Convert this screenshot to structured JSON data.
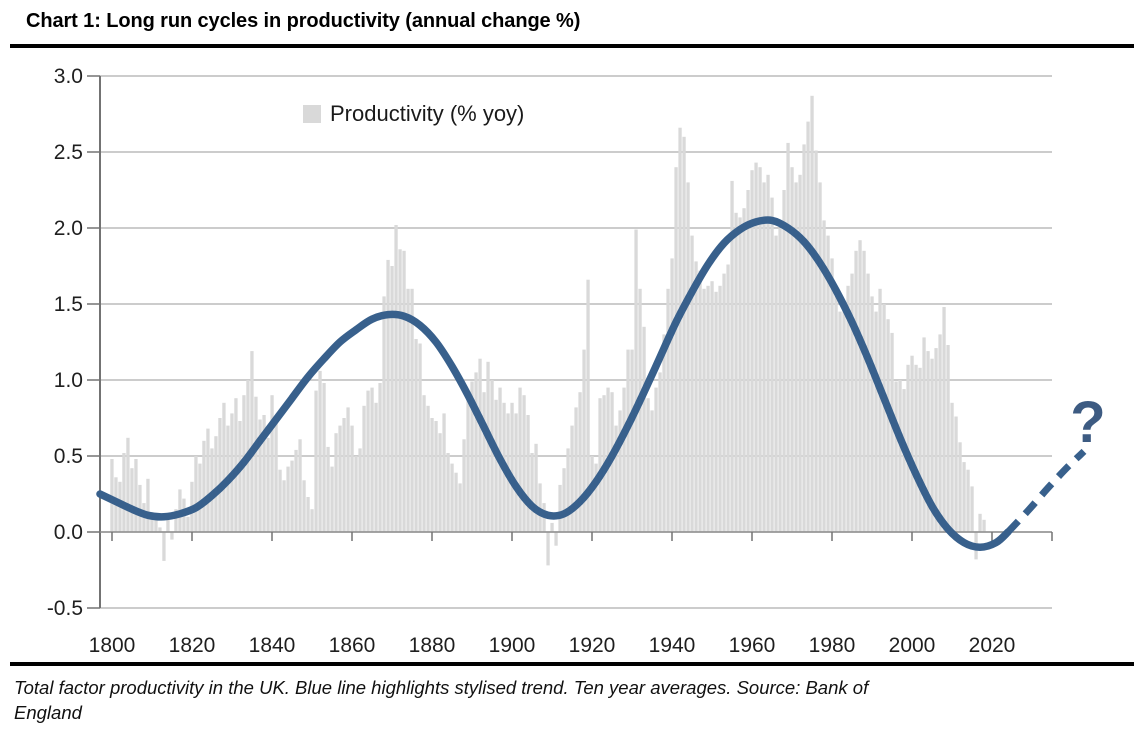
{
  "header": {
    "title": "Chart 1: Long run cycles in productivity (annual change %)"
  },
  "footer": {
    "caption_line1": "Total factor productivity in the UK. Blue line highlights stylised trend. Ten year averages. Source: Bank of",
    "caption_line2": "England"
  },
  "chart_data": {
    "type": "bar",
    "title": "Chart 1: Long run cycles in productivity (annual change %)",
    "source_note": "Total factor productivity in the UK. Blue line highlights stylised trend. Ten year averages. Source: Bank of England",
    "xlabel": "",
    "ylabel": "",
    "xlim": [
      1797,
      2044
    ],
    "ylim": [
      -0.5,
      3.0
    ],
    "grid": "horizontal",
    "x_ticks": [
      1800,
      1820,
      1840,
      1860,
      1880,
      1900,
      1920,
      1940,
      1960,
      1980,
      2000,
      2020
    ],
    "y_ticks": [
      "3.0",
      "2.5",
      "2.0",
      "1.5",
      "1.0",
      "0.5",
      "0.0",
      "-0.5"
    ],
    "colors": {
      "bar": "#d9d9d9",
      "trend": "#38608c",
      "grid": "#adadad",
      "axis": "#737373",
      "tick_label": "#1f1f1f"
    },
    "legend": {
      "position": "top-center",
      "entries": [
        {
          "label": "Productivity (% yoy)",
          "swatch_color": "#d9d9d9"
        }
      ]
    },
    "series": [
      {
        "name": "Productivity (% yoy)",
        "type": "bar",
        "color": "#d9d9d9",
        "start_year": 1800,
        "values": [
          0.48,
          0.36,
          0.33,
          0.52,
          0.62,
          0.42,
          0.48,
          0.31,
          0.19,
          0.35,
          0.13,
          0.08,
          0.03,
          -0.19,
          0.08,
          -0.05,
          0.15,
          0.28,
          0.22,
          0.1,
          0.33,
          0.5,
          0.45,
          0.6,
          0.68,
          0.55,
          0.63,
          0.75,
          0.85,
          0.7,
          0.78,
          0.88,
          0.73,
          0.9,
          1.0,
          1.19,
          0.89,
          0.74,
          0.77,
          0.62,
          0.9,
          0.75,
          0.41,
          0.34,
          0.43,
          0.47,
          0.54,
          0.61,
          0.34,
          0.23,
          0.15,
          0.93,
          1.06,
          0.98,
          0.56,
          0.43,
          0.65,
          0.7,
          0.75,
          0.82,
          0.7,
          0.5,
          0.55,
          0.83,
          0.93,
          0.95,
          0.85,
          0.98,
          1.55,
          1.79,
          1.75,
          2.02,
          1.86,
          1.85,
          1.6,
          1.6,
          1.27,
          1.24,
          0.9,
          0.83,
          0.75,
          0.73,
          0.65,
          0.78,
          0.52,
          0.45,
          0.39,
          0.32,
          0.61,
          0.89,
          0.99,
          1.05,
          1.14,
          0.92,
          1.12,
          1.0,
          0.87,
          0.95,
          0.85,
          0.78,
          0.85,
          0.78,
          0.95,
          0.9,
          0.77,
          0.52,
          0.58,
          0.32,
          0.19,
          -0.22,
          0.06,
          -0.09,
          0.31,
          0.42,
          0.55,
          0.7,
          0.82,
          0.92,
          1.2,
          1.66,
          0.5,
          0.45,
          0.88,
          0.9,
          0.95,
          0.92,
          0.7,
          0.8,
          0.95,
          1.2,
          1.2,
          1.99,
          1.6,
          1.35,
          0.88,
          0.8,
          0.95,
          1.05,
          1.3,
          1.6,
          1.8,
          2.4,
          2.66,
          2.6,
          2.3,
          1.95,
          1.78,
          1.72,
          1.6,
          1.62,
          1.65,
          1.58,
          1.62,
          1.7,
          1.76,
          2.31,
          2.1,
          2.07,
          2.13,
          2.25,
          2.38,
          2.43,
          2.4,
          2.3,
          2.35,
          2.2,
          1.95,
          2.0,
          2.25,
          2.56,
          2.4,
          2.3,
          2.35,
          2.55,
          2.7,
          2.87,
          2.51,
          2.3,
          2.05,
          1.95,
          1.8,
          1.62,
          1.45,
          1.5,
          1.62,
          1.7,
          1.85,
          1.92,
          1.85,
          1.7,
          1.55,
          1.45,
          1.6,
          1.5,
          1.4,
          1.31,
          0.99,
          1.0,
          0.94,
          1.1,
          1.16,
          1.1,
          1.08,
          1.28,
          1.19,
          1.14,
          1.21,
          1.3,
          1.48,
          1.23,
          0.85,
          0.76,
          0.59,
          0.46,
          0.41,
          0.3,
          -0.18,
          0.12,
          0.08
        ]
      },
      {
        "name": "Stylised trend",
        "type": "line",
        "style": "solid",
        "color": "#38608c",
        "points": [
          [
            1797,
            0.25
          ],
          [
            1801,
            0.2
          ],
          [
            1805,
            0.15
          ],
          [
            1809,
            0.11
          ],
          [
            1813,
            0.1
          ],
          [
            1817,
            0.12
          ],
          [
            1821,
            0.16
          ],
          [
            1825,
            0.24
          ],
          [
            1829,
            0.34
          ],
          [
            1833,
            0.46
          ],
          [
            1837,
            0.6
          ],
          [
            1841,
            0.74
          ],
          [
            1845,
            0.88
          ],
          [
            1849,
            1.02
          ],
          [
            1853,
            1.14
          ],
          [
            1857,
            1.25
          ],
          [
            1861,
            1.33
          ],
          [
            1865,
            1.4
          ],
          [
            1869,
            1.43
          ],
          [
            1873,
            1.42
          ],
          [
            1877,
            1.36
          ],
          [
            1881,
            1.25
          ],
          [
            1885,
            1.09
          ],
          [
            1889,
            0.9
          ],
          [
            1893,
            0.69
          ],
          [
            1897,
            0.48
          ],
          [
            1901,
            0.3
          ],
          [
            1905,
            0.17
          ],
          [
            1909,
            0.11
          ],
          [
            1913,
            0.12
          ],
          [
            1917,
            0.2
          ],
          [
            1921,
            0.33
          ],
          [
            1925,
            0.5
          ],
          [
            1929,
            0.7
          ],
          [
            1933,
            0.92
          ],
          [
            1937,
            1.15
          ],
          [
            1941,
            1.38
          ],
          [
            1945,
            1.58
          ],
          [
            1949,
            1.76
          ],
          [
            1953,
            1.9
          ],
          [
            1957,
            1.99
          ],
          [
            1961,
            2.04
          ],
          [
            1965,
            2.05
          ],
          [
            1969,
            2.0
          ],
          [
            1973,
            1.91
          ],
          [
            1977,
            1.77
          ],
          [
            1981,
            1.59
          ],
          [
            1985,
            1.38
          ],
          [
            1989,
            1.14
          ],
          [
            1993,
            0.88
          ],
          [
            1997,
            0.62
          ],
          [
            2001,
            0.38
          ],
          [
            2005,
            0.17
          ],
          [
            2009,
            0.02
          ],
          [
            2013,
            -0.07
          ],
          [
            2017,
            -0.1
          ],
          [
            2021,
            -0.07
          ],
          [
            2024,
            0.0
          ]
        ]
      },
      {
        "name": "Stylised trend (projection)",
        "type": "line",
        "style": "dashed",
        "color": "#38608c",
        "points": [
          [
            2024,
            0.0
          ],
          [
            2029,
            0.14
          ],
          [
            2034,
            0.29
          ],
          [
            2039,
            0.43
          ],
          [
            2043,
            0.53
          ]
        ]
      }
    ],
    "annotations": [
      {
        "text": "?",
        "year": 2044,
        "value": 0.74,
        "color": "#3d5b82"
      }
    ]
  }
}
